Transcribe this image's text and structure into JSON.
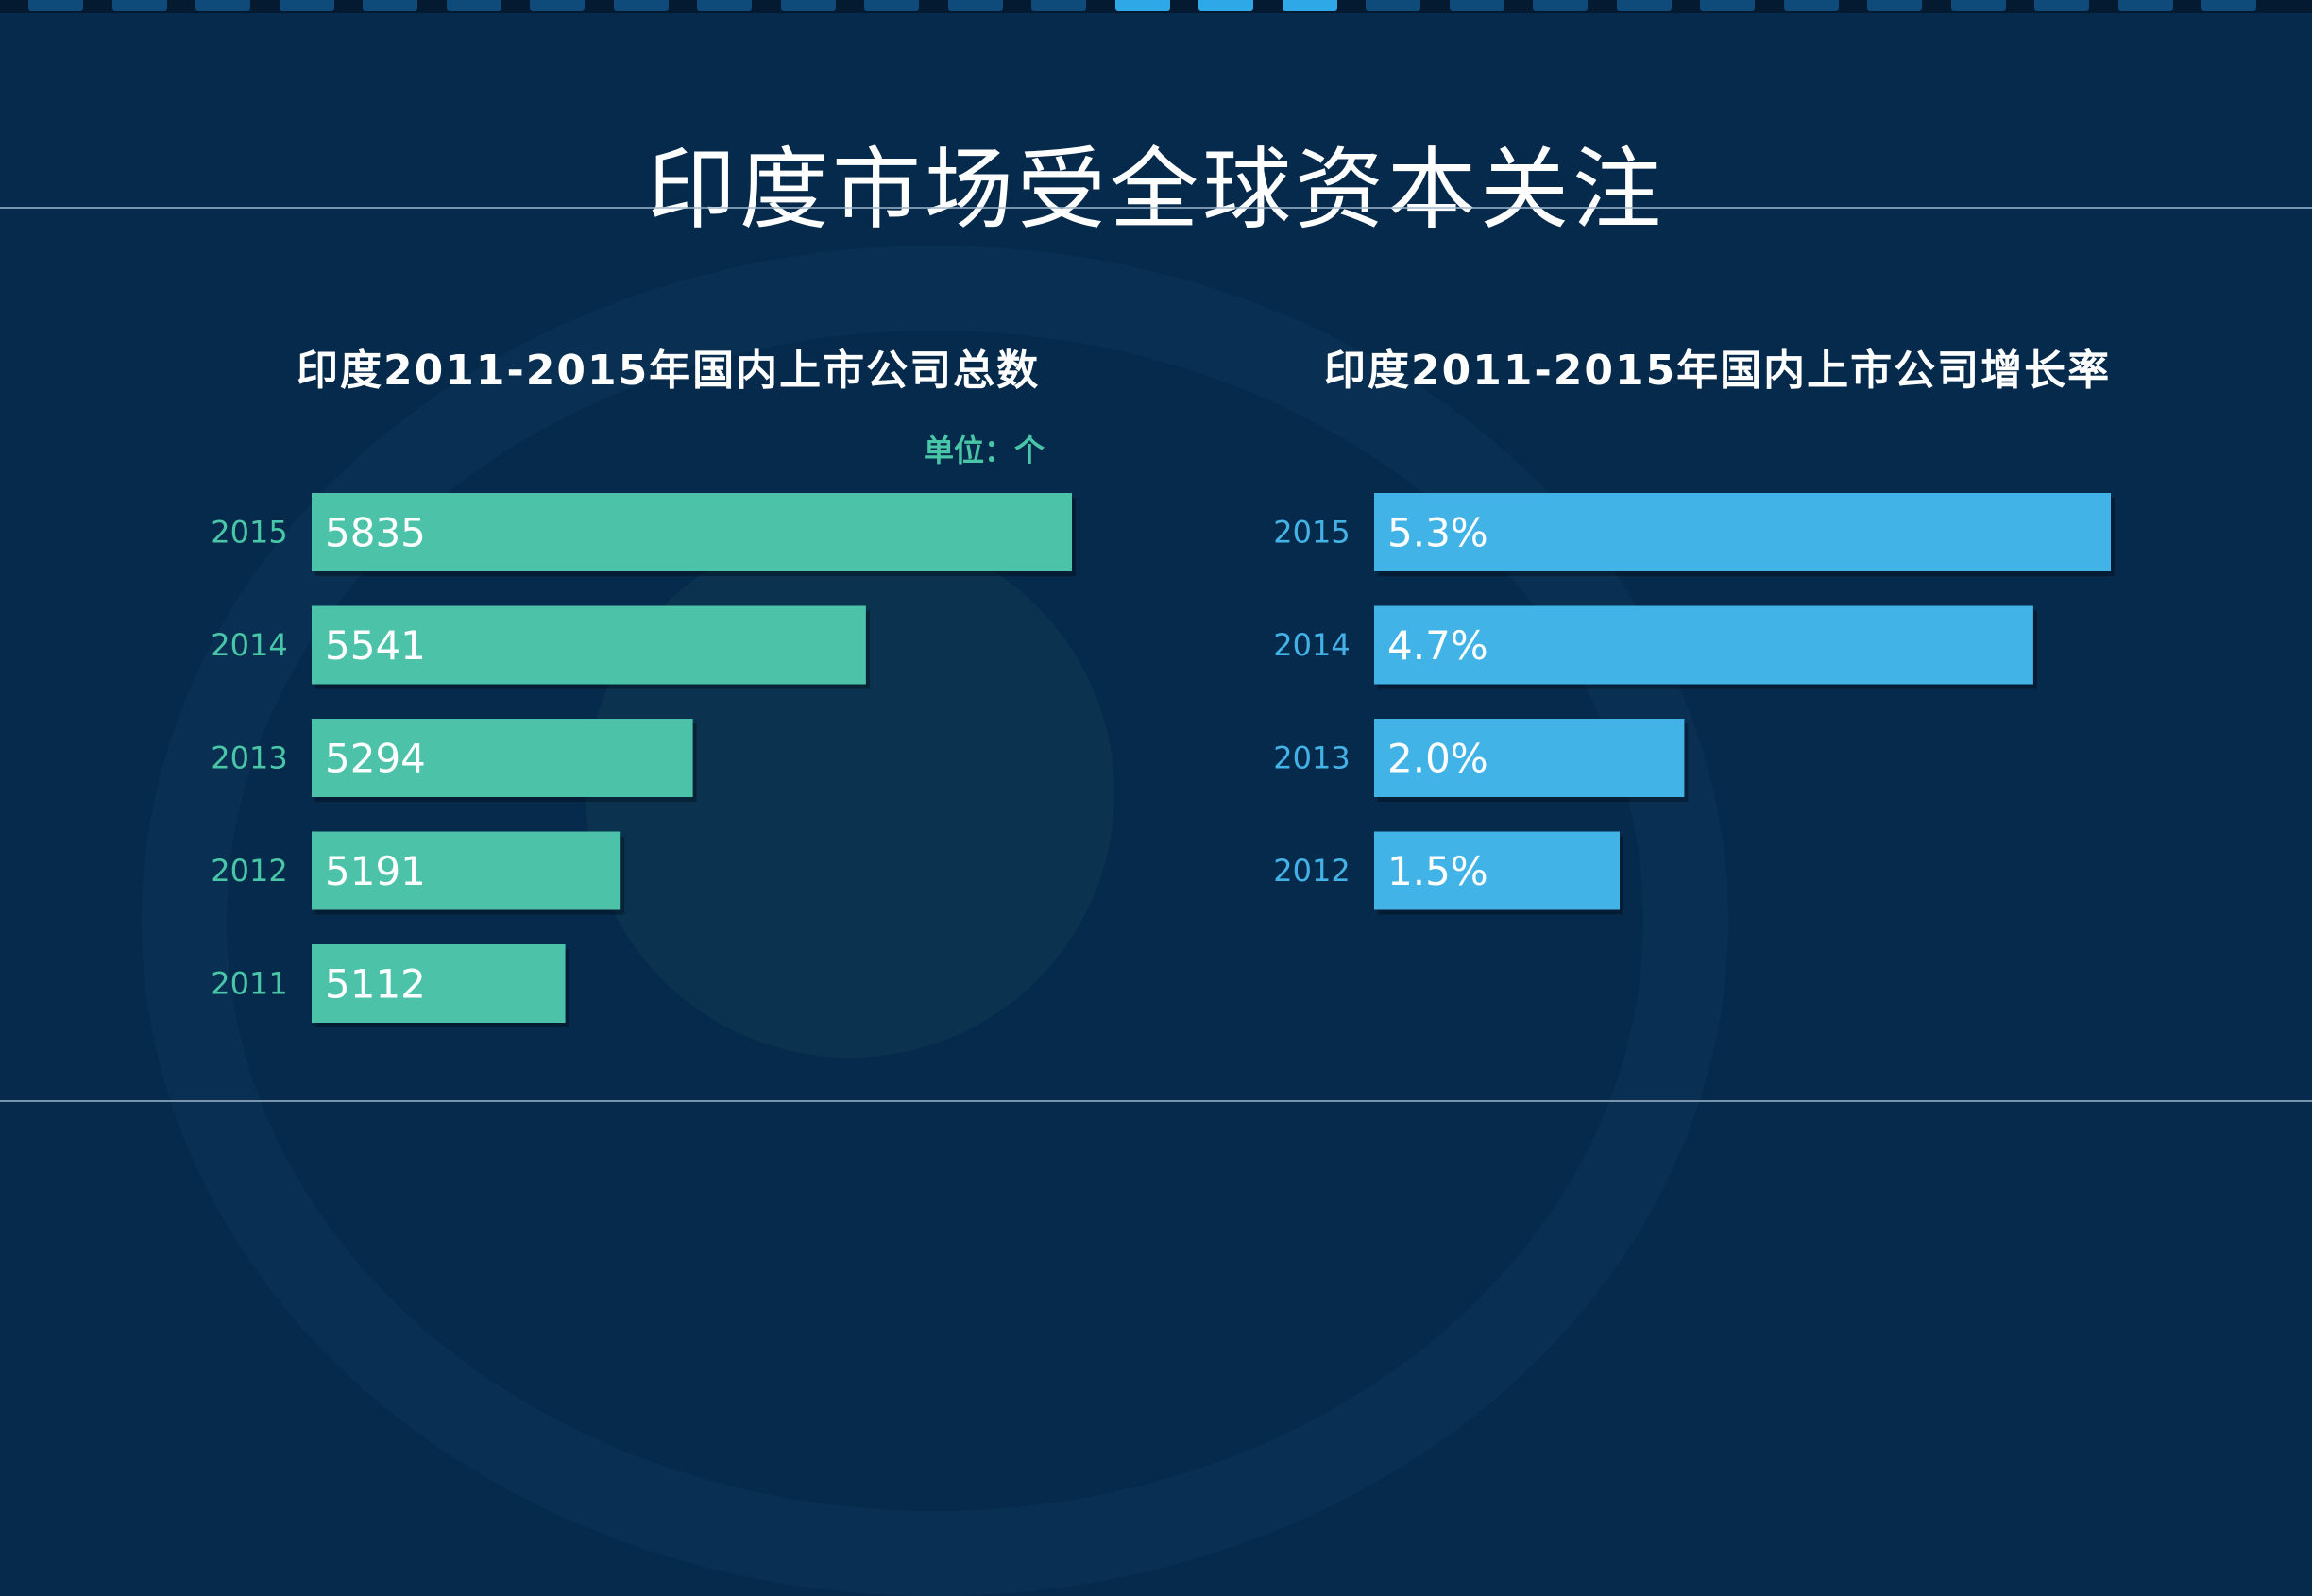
{
  "title": "印度市场受全球资本关注",
  "colors": {
    "background": "#062a4b",
    "green_bar": "#4cc3a9",
    "blue_bar": "#42b3e6",
    "green_text": "#49c6a8",
    "blue_text": "#43b2e6"
  },
  "chart_data": [
    {
      "type": "bar",
      "orientation": "horizontal",
      "title": "印度2011-2015年国内上市公司总数",
      "unit": "单位：个",
      "categories": [
        "2015",
        "2014",
        "2013",
        "2012",
        "2011"
      ],
      "values": [
        5835,
        5541,
        5294,
        5191,
        5112
      ],
      "value_labels": [
        "5835",
        "5541",
        "5294",
        "5191",
        "5112"
      ],
      "xlim": [
        4750,
        5835
      ],
      "grid": false,
      "legend": "none"
    },
    {
      "type": "bar",
      "orientation": "horizontal",
      "title": "印度2011-2015年国内上市公司增长率",
      "categories": [
        "2015",
        "2014",
        "2013",
        "2012"
      ],
      "values": [
        5.3,
        4.7,
        2.0,
        1.5
      ],
      "value_labels": [
        "5.3%",
        "4.7%",
        "2.0%",
        "1.5%"
      ],
      "xlim": [
        -0.4,
        5.3
      ],
      "grid": false,
      "legend": "none"
    }
  ]
}
